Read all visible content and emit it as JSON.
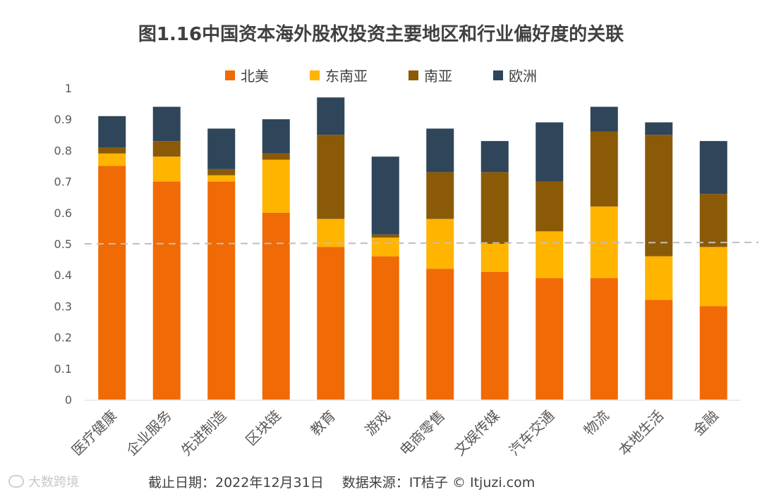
{
  "title": "图1.16中国资本海外股权投资主要地区和行业偏好度的关联",
  "footer": {
    "date": "截止日期：2022年12月31日",
    "source": "数据来源：IT桔子 © Itjuzi.com"
  },
  "brand": "大数跨境",
  "colors": {
    "北美": "#F06A05",
    "东南亚": "#FFB400",
    "南亚": "#8A5A07",
    "欧洲": "#2F4559",
    "reference_line": "#BFBFBF",
    "axis_text": "#595959"
  },
  "chart_data": {
    "type": "bar",
    "stacked": true,
    "title": "图1.16中国资本海外股权投资主要地区和行业偏好度的关联",
    "categories": [
      "医疗健康",
      "企业服务",
      "先进制造",
      "区块链",
      "教育",
      "游戏",
      "电商零售",
      "文娱传媒",
      "汽车交通",
      "物流",
      "本地生活",
      "金融"
    ],
    "series": [
      {
        "name": "北美",
        "values": [
          0.75,
          0.7,
          0.7,
          0.6,
          0.49,
          0.46,
          0.42,
          0.41,
          0.39,
          0.39,
          0.32,
          0.3
        ]
      },
      {
        "name": "东南亚",
        "values": [
          0.04,
          0.08,
          0.02,
          0.17,
          0.09,
          0.06,
          0.16,
          0.09,
          0.15,
          0.23,
          0.14,
          0.19
        ]
      },
      {
        "name": "南亚",
        "values": [
          0.02,
          0.05,
          0.02,
          0.02,
          0.27,
          0.01,
          0.15,
          0.23,
          0.16,
          0.24,
          0.39,
          0.17
        ]
      },
      {
        "name": "欧洲",
        "values": [
          0.1,
          0.11,
          0.13,
          0.11,
          0.12,
          0.25,
          0.14,
          0.1,
          0.19,
          0.08,
          0.04,
          0.17
        ]
      }
    ],
    "yticks": [
      "0",
      "0.1",
      "0.2",
      "0.3",
      "0.4",
      "0.5",
      "0.6",
      "0.7",
      "0.8",
      "0.9",
      "1"
    ],
    "ylim": [
      0,
      1
    ],
    "reference_line": 0.5,
    "reference_line_style": "dashed",
    "legend_position": "top",
    "grid": false
  }
}
